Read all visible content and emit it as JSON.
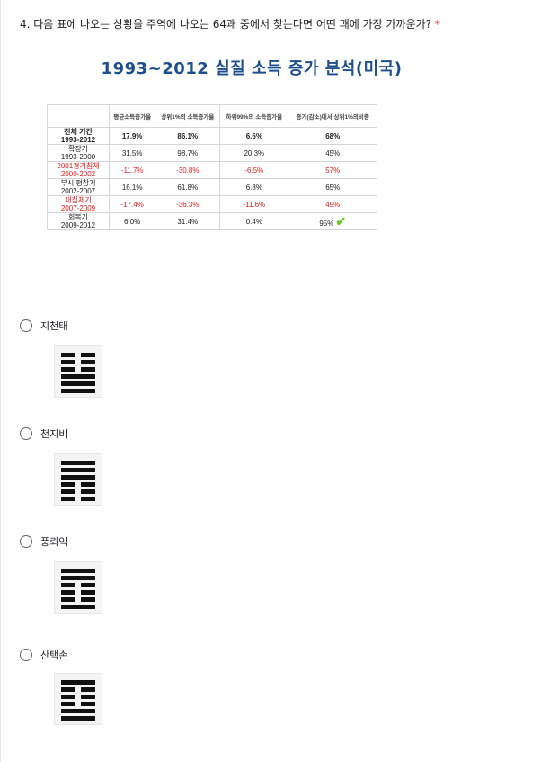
{
  "question": {
    "text": "4. 다음 표에 나오는 상황을 주역에 나오는 64괘 중에서 찾는다면 어떤 괘에 가장 가까운가?",
    "required_mark": "*"
  },
  "figure": {
    "title": "1993~2012 실질 소득 증가 분석(미국)",
    "headers": [
      "",
      "평균소득증가율",
      "상위1%의 소득증가율",
      "하위99%의 소득증가율",
      "증가(감소)에서 상위1%의비중"
    ],
    "rows": [
      {
        "name": "전체 기간",
        "years": "1993-2012",
        "cells": [
          "17.9%",
          "86.1%",
          "6.6%",
          "68%"
        ],
        "style": "bold"
      },
      {
        "name": "확장기",
        "years": "1993-2000",
        "cells": [
          "31.5%",
          "98.7%",
          "20.3%",
          "45%"
        ],
        "style": "normal"
      },
      {
        "name": "2001경기침체",
        "years": "2000-2002",
        "cells": [
          "-11.7%",
          "-30.8%",
          "-6.5%",
          "57%"
        ],
        "style": "red"
      },
      {
        "name": "부시 평창기",
        "years": "2002-2007",
        "cells": [
          "16.1%",
          "61.8%",
          "6.8%",
          "65%"
        ],
        "style": "normal"
      },
      {
        "name": "대침체기",
        "years": "2007-2009",
        "cells": [
          "-17.4%",
          "-36.3%",
          "-11.6%",
          "49%"
        ],
        "style": "red"
      },
      {
        "name": "회복기",
        "years": "2009-2012",
        "cells": [
          "6.0%",
          "31.4%",
          "0.4%",
          "95%"
        ],
        "style": "normal"
      }
    ],
    "check_mark": "✔"
  },
  "options": [
    {
      "label": "지천태",
      "icon": "hexagram-tai-icon",
      "lines": [
        0,
        0,
        0,
        1,
        1,
        1
      ]
    },
    {
      "label": "천지비",
      "icon": "hexagram-pi-icon",
      "lines": [
        1,
        1,
        1,
        0,
        0,
        0
      ]
    },
    {
      "label": "풍뢰익",
      "icon": "hexagram-yi-icon",
      "lines": [
        1,
        1,
        0,
        0,
        0,
        1
      ]
    },
    {
      "label": "산택손",
      "icon": "hexagram-sun-icon",
      "lines": [
        1,
        0,
        0,
        0,
        1,
        1
      ]
    }
  ]
}
